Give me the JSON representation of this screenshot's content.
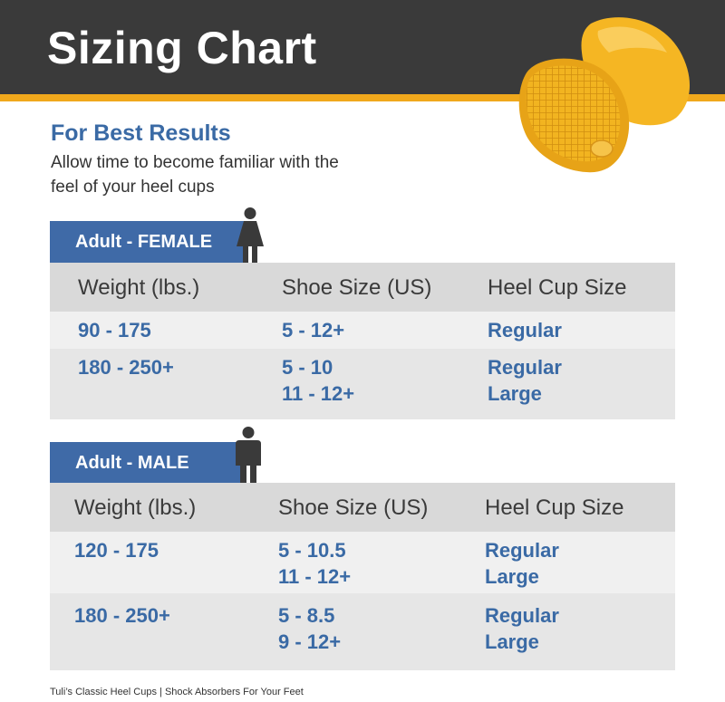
{
  "header": {
    "title": "Sizing Chart"
  },
  "intro": {
    "heading": "For Best Results",
    "line1": "Allow time to become familiar with the",
    "line2": "feel of your heel cups"
  },
  "female": {
    "tab_label": "Adult - FEMALE",
    "headers": [
      "Weight (lbs.)",
      "Shoe Size (US)",
      "Heel Cup Size"
    ],
    "rows": [
      {
        "weight": "90 - 175",
        "shoe": [
          "5 - 12+"
        ],
        "cup": [
          "Regular"
        ]
      },
      {
        "weight": "180 - 250+",
        "shoe": [
          "5 - 10",
          "11 - 12+"
        ],
        "cup": [
          "Regular",
          "Large"
        ]
      }
    ]
  },
  "male": {
    "tab_label": "Adult - MALE",
    "headers": [
      "Weight (lbs.)",
      "Shoe Size (US)",
      "Heel Cup Size"
    ],
    "rows": [
      {
        "weight": "120 - 175",
        "shoe": [
          "5 - 10.5",
          "11 - 12+"
        ],
        "cup": [
          "Regular",
          "Large"
        ]
      },
      {
        "weight": "180 - 250+",
        "shoe": [
          "5 - 8.5",
          "9 - 12+"
        ],
        "cup": [
          "Regular",
          "Large"
        ]
      }
    ]
  },
  "footer": {
    "text": "Tuli’s Classic Heel Cups | Shock Absorbers For Your Feet"
  },
  "colors": {
    "header_bg": "#3a3a3a",
    "accent": "#f0a81c",
    "brand_blue": "#3f6aa7",
    "text_blue": "#3a6aa5"
  }
}
